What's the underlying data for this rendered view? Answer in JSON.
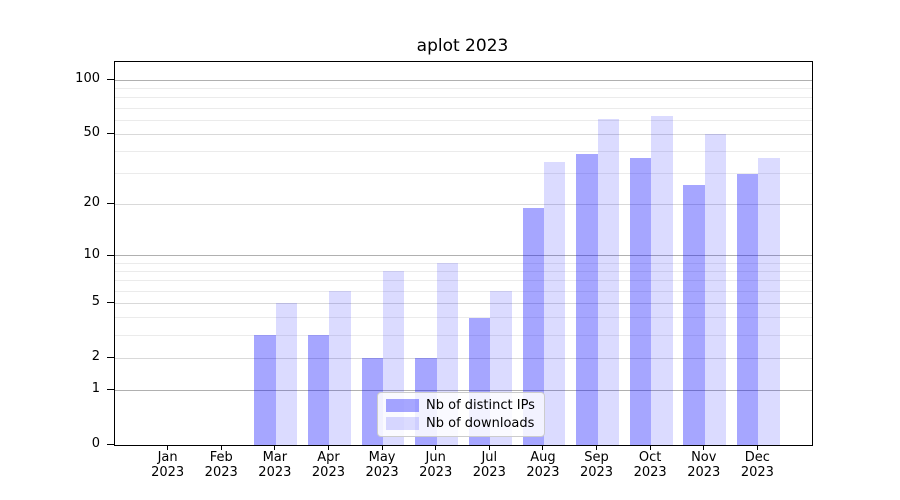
{
  "title": "aplot 2023",
  "legend": {
    "items": [
      {
        "label": "Nb of distinct IPs",
        "color": "rgba(0,0,255,0.35)"
      },
      {
        "label": "Nb of downloads",
        "color": "rgba(0,0,255,0.14)"
      }
    ]
  },
  "chart_data": {
    "type": "bar",
    "title": "aplot 2023",
    "categories": [
      "Jan",
      "Feb",
      "Mar",
      "Apr",
      "May",
      "Jun",
      "Jul",
      "Aug",
      "Sep",
      "Oct",
      "Nov",
      "Dec"
    ],
    "year": "2023",
    "series": [
      {
        "name": "Nb of distinct IPs",
        "values": [
          0,
          0,
          3,
          3,
          2,
          2,
          4,
          19,
          39,
          37,
          26,
          30
        ],
        "color": "rgba(0,0,255,0.35)"
      },
      {
        "name": "Nb of downloads",
        "values": [
          0,
          0,
          5,
          6,
          8,
          9,
          6,
          35,
          61,
          63,
          50,
          37
        ],
        "color": "rgba(0,0,255,0.14)"
      }
    ],
    "yscale": "log1p",
    "ylim": [
      0,
      128
    ],
    "y_ticks": [
      0,
      1,
      2,
      5,
      10,
      20,
      50,
      100
    ],
    "y_major_ticks": [
      1,
      10,
      100
    ],
    "y_minor_gridlines": [
      3,
      4,
      6,
      7,
      8,
      9,
      30,
      40,
      60,
      70,
      80,
      90
    ],
    "grid": true,
    "legend_position": "lower center",
    "colors": {
      "grid_major": "#b0b0b0",
      "grid_mid": "#d9d9d9",
      "grid_minor": "#ebebeb",
      "spine": "#000000",
      "text": "#000000"
    }
  }
}
